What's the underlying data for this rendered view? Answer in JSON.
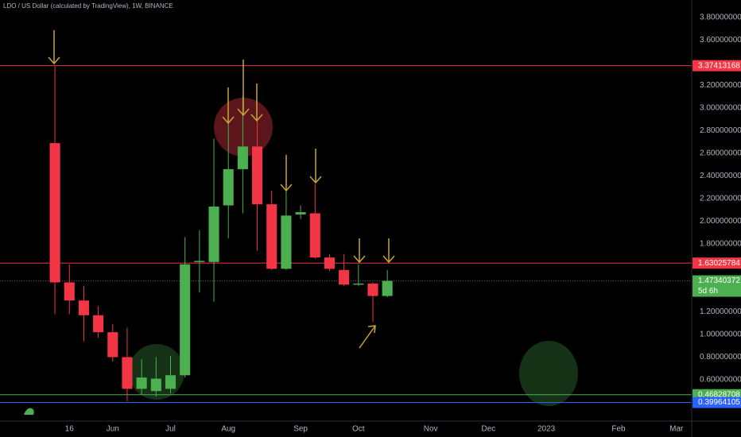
{
  "chart_data": {
    "type": "candlestick",
    "title": "LDO / US Dollar (calculated by TradingView), 1W, BINANCE",
    "up_color": "#4caf50",
    "down_color": "#f23645",
    "ylim": [
      0.235,
      3.954
    ],
    "yticks": [
      {
        "value": 3.8,
        "label": "3.80000000"
      },
      {
        "value": 3.6,
        "label": "3.60000000"
      },
      {
        "value": 3.2,
        "label": "3.20000000"
      },
      {
        "value": 3.0,
        "label": "3.00000000"
      },
      {
        "value": 2.8,
        "label": "2.80000000"
      },
      {
        "value": 2.6,
        "label": "2.60000000"
      },
      {
        "value": 2.4,
        "label": "2.40000000"
      },
      {
        "value": 2.2,
        "label": "2.20000000"
      },
      {
        "value": 2.0,
        "label": "2.00000000"
      },
      {
        "value": 1.8,
        "label": "1.80000000"
      },
      {
        "value": 1.2,
        "label": "1.20000000"
      },
      {
        "value": 1.0,
        "label": "1.00000000"
      },
      {
        "value": 0.8,
        "label": "0.80000000"
      },
      {
        "value": 0.6,
        "label": "0.60000000"
      }
    ],
    "xlim": [
      -3.8,
      44.06
    ],
    "xticks": [
      {
        "value": 1,
        "label": "16"
      },
      {
        "value": 4,
        "label": "Jun"
      },
      {
        "value": 8,
        "label": "Jul"
      },
      {
        "value": 12,
        "label": "Aug"
      },
      {
        "value": 17,
        "label": "Sep"
      },
      {
        "value": 21,
        "label": "Oct"
      },
      {
        "value": 26,
        "label": "Nov"
      },
      {
        "value": 30,
        "label": "Dec"
      },
      {
        "value": 34,
        "label": "2023"
      },
      {
        "value": 39,
        "label": "Feb"
      },
      {
        "value": 43,
        "label": "Mar"
      }
    ],
    "grid": false,
    "open": [
      2.69,
      1.46,
      1.3,
      1.17,
      1.02,
      0.8,
      0.52,
      0.5,
      0.52,
      0.64,
      1.64,
      1.64,
      2.14,
      2.46,
      2.66,
      2.15,
      1.58,
      2.06,
      2.07,
      1.68,
      1.57,
      1.44,
      1.45,
      1.34
    ],
    "high": [
      3.37,
      1.62,
      1.43,
      1.25,
      1.09,
      1.06,
      0.78,
      0.8,
      0.81,
      1.86,
      1.92,
      2.73,
      2.9,
      3.11,
      2.9,
      2.27,
      2.27,
      2.14,
      2.33,
      1.71,
      1.71,
      1.62,
      1.46,
      1.57
    ],
    "low": [
      1.18,
      1.18,
      0.94,
      0.97,
      0.76,
      0.41,
      0.47,
      0.45,
      0.48,
      0.62,
      1.37,
      1.29,
      1.85,
      2.07,
      1.74,
      1.57,
      1.57,
      2.02,
      1.67,
      1.56,
      1.43,
      1.43,
      1.11,
      1.33
    ],
    "close": [
      1.46,
      1.3,
      1.17,
      1.02,
      0.8,
      0.52,
      0.62,
      0.61,
      0.64,
      1.62,
      1.65,
      2.13,
      2.46,
      2.66,
      2.15,
      1.58,
      2.05,
      2.08,
      1.68,
      1.58,
      1.44,
      1.45,
      1.34,
      1.47340372
    ],
    "levels": [
      {
        "value": 3.37413168,
        "color": "#f23645"
      },
      {
        "value": 1.63025784,
        "color": "#f23645"
      },
      {
        "value": 0.46828708,
        "color": "#4caf50"
      },
      {
        "value": 0.39964105,
        "color": "#2962ff"
      }
    ],
    "last_price": {
      "value": 1.47340372,
      "countdown": "5d 6h",
      "color": "#4caf50"
    }
  }
}
